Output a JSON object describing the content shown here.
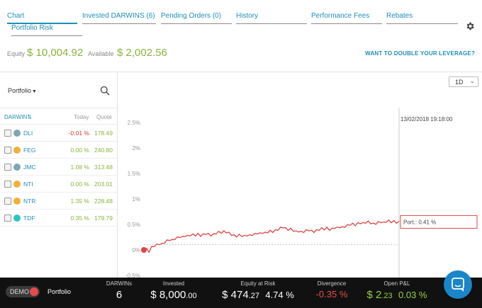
{
  "tabs": [
    {
      "label": "Chart",
      "active": true
    },
    {
      "label": "Invested DARWINS (6)",
      "active": false
    },
    {
      "label": "Pending Orders (0)",
      "active": false
    },
    {
      "label": "History",
      "active": false
    },
    {
      "label": "Performance Fees",
      "active": false
    },
    {
      "label": "Rebates",
      "active": false
    },
    {
      "label": "Portfolio Risk",
      "active": false
    }
  ],
  "account": {
    "equity_label": "Equity",
    "equity_value": "$ 10,004.92",
    "available_label": "Available",
    "available_value": "$ 2,002.56",
    "leverage_link": "WANT TO DOUBLE YOUR LEVERAGE?"
  },
  "sidebar": {
    "portfolio_dropdown": "Portfolio",
    "columns": {
      "darwin": "DARWIN",
      "today": "Today",
      "quote": "Quote"
    },
    "rows": [
      {
        "ticker": "DLI",
        "today": "-0.01 %",
        "quote": "178.49",
        "dot_color": "#7ea6b3",
        "today_color": "#d9342b"
      },
      {
        "ticker": "FEG",
        "today": "0.00 %",
        "quote": "240.80",
        "dot_color": "#f2b134",
        "today_color": "#8bb33b"
      },
      {
        "ticker": "JMC",
        "today": "1.08 %",
        "quote": "313.48",
        "dot_color": "#7ea6b3",
        "today_color": "#8bb33b"
      },
      {
        "ticker": "NTI",
        "today": "0.00 %",
        "quote": "203.01",
        "dot_color": "#f2b134",
        "today_color": "#8bb33b"
      },
      {
        "ticker": "NTR",
        "today": "1.35 %",
        "quote": "228.48",
        "dot_color": "#f2b134",
        "today_color": "#8bb33b"
      },
      {
        "ticker": "TDF",
        "today": "0.35 %",
        "quote": "179.79",
        "dot_color": "#2ec4c4",
        "today_color": "#8bb33b"
      }
    ]
  },
  "chart_controls": {
    "period": "1D"
  },
  "chart_data": {
    "type": "line",
    "crosshair_label": "13/02/2018 19:18:00",
    "tooltip": "Port.: 0.41 %",
    "y_ticks": [
      "2.5%",
      "2%",
      "1.5%",
      "1%",
      "0.5%",
      "0%",
      "-0.5%"
    ],
    "ylim": [
      -0.5,
      2.5
    ],
    "series": [
      {
        "color": "#e04545",
        "values": [
          0.0,
          0.02,
          -0.03,
          0.05,
          0.08,
          0.1,
          0.12,
          0.11,
          0.15,
          0.18,
          0.2,
          0.19,
          0.22,
          0.24,
          0.26,
          0.25,
          0.28,
          0.27,
          0.29,
          0.3,
          0.29,
          0.31,
          0.28,
          0.3,
          0.32,
          0.31,
          0.29,
          0.3,
          0.33,
          0.35,
          0.34,
          0.36,
          0.35,
          0.33,
          0.3,
          0.28,
          0.27,
          0.29,
          0.28,
          0.27,
          0.29,
          0.28,
          0.3,
          0.31,
          0.33,
          0.32,
          0.34,
          0.33,
          0.35,
          0.37,
          0.36,
          0.38,
          0.4,
          0.43,
          0.45,
          0.42,
          0.4,
          0.41,
          0.38,
          0.36,
          0.37,
          0.35,
          0.36,
          0.38,
          0.39,
          0.37,
          0.36,
          0.38,
          0.4,
          0.42,
          0.41,
          0.43,
          0.4,
          0.41,
          0.44,
          0.43,
          0.45,
          0.44,
          0.46,
          0.48,
          0.5,
          0.51,
          0.49,
          0.52,
          0.53,
          0.52,
          0.54,
          0.55,
          0.53,
          0.51,
          0.52,
          0.54,
          0.55,
          0.53,
          0.56,
          0.57,
          0.55,
          0.56,
          0.54,
          0.55
        ]
      }
    ]
  },
  "bottom_bar": {
    "mode": "DEMO",
    "portfolio_label": "Portfolio",
    "darwins_label": "DARWINs",
    "darwins_value": "6",
    "invested_label": "Invested",
    "invested_main": "$ 8,000",
    "invested_dec": ".00",
    "ear_label": "Equity at Risk",
    "ear_main": "$ 474",
    "ear_dec": ".27",
    "ear_pct": "4.74 %",
    "divergence_label": "Divergence",
    "divergence_value": "-0.35 %",
    "pnl_label": "Open P&L",
    "pnl_main": "$ 2",
    "pnl_dec": ".23",
    "pnl_pct": "0.03 %"
  },
  "colors": {
    "accent": "#1f8fb3",
    "positive": "#8bb33b",
    "negative": "#d9342b",
    "series": "#e04545"
  }
}
